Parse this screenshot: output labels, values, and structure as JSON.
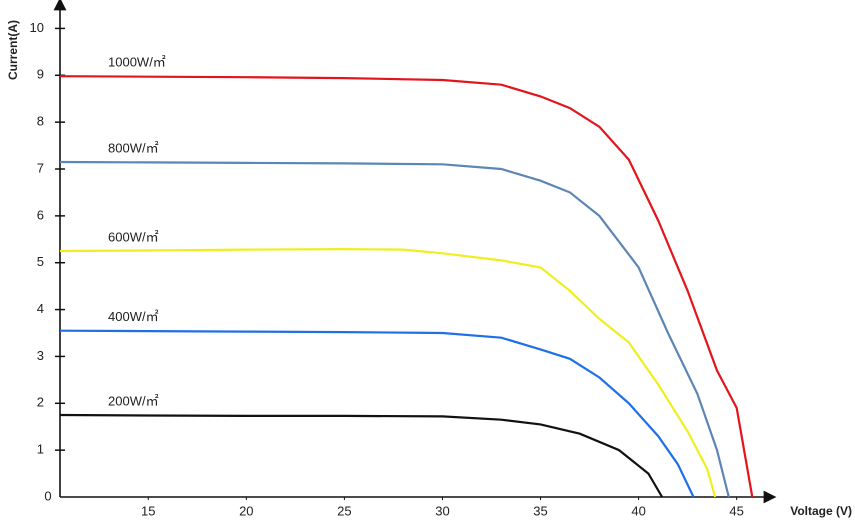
{
  "chart_data": {
    "type": "line",
    "y_label": "Current(A)",
    "x_label": "Voltage (V)",
    "origin_label": "0",
    "xlim": [
      10.5,
      46.7
    ],
    "xticks": [
      15,
      20,
      25,
      30,
      35,
      40,
      45
    ],
    "ylim": [
      0,
      10.5
    ],
    "yticks": [
      1,
      2,
      3,
      4,
      5,
      6,
      7,
      8,
      9,
      10
    ],
    "series": [
      {
        "name": "1000W/㎡",
        "color": "#e3151b",
        "x": [
          10.5,
          15,
          20,
          25,
          30,
          33,
          35,
          36.5,
          38,
          39.5,
          41,
          42.5,
          44,
          45,
          45.8
        ],
        "values": [
          8.98,
          8.97,
          8.96,
          8.94,
          8.9,
          8.8,
          8.55,
          8.3,
          7.9,
          7.2,
          5.9,
          4.4,
          2.7,
          1.9,
          0
        ]
      },
      {
        "name": "800W/㎡",
        "color": "#5b86b5",
        "x": [
          10.5,
          15,
          20,
          25,
          30,
          33,
          35,
          36.5,
          38,
          40,
          41.5,
          43,
          44,
          44.6
        ],
        "values": [
          7.15,
          7.14,
          7.13,
          7.12,
          7.1,
          7.0,
          6.75,
          6.5,
          6.0,
          4.9,
          3.5,
          2.2,
          1.0,
          0
        ]
      },
      {
        "name": "600W/㎡",
        "color": "#f0ee1e",
        "x": [
          10.5,
          15,
          20,
          25,
          28,
          30,
          33,
          35,
          36.5,
          38,
          39.5,
          41,
          42.5,
          43.5,
          43.9
        ],
        "values": [
          5.25,
          5.26,
          5.28,
          5.29,
          5.28,
          5.2,
          5.05,
          4.9,
          4.4,
          3.8,
          3.3,
          2.4,
          1.4,
          0.6,
          0
        ]
      },
      {
        "name": "400W/㎡",
        "color": "#1f6fe6",
        "x": [
          10.5,
          15,
          20,
          25,
          30,
          33,
          35,
          36.5,
          38,
          39.5,
          41,
          42,
          42.8
        ],
        "values": [
          3.55,
          3.54,
          3.53,
          3.52,
          3.5,
          3.4,
          3.15,
          2.95,
          2.55,
          2.0,
          1.3,
          0.7,
          0
        ]
      },
      {
        "name": "200W/㎡",
        "color": "#111111",
        "x": [
          10.5,
          15,
          20,
          25,
          30,
          33,
          35,
          37,
          39,
          40.5,
          41.2
        ],
        "values": [
          1.75,
          1.74,
          1.73,
          1.73,
          1.72,
          1.65,
          1.55,
          1.35,
          1.0,
          0.5,
          0
        ]
      }
    ]
  }
}
